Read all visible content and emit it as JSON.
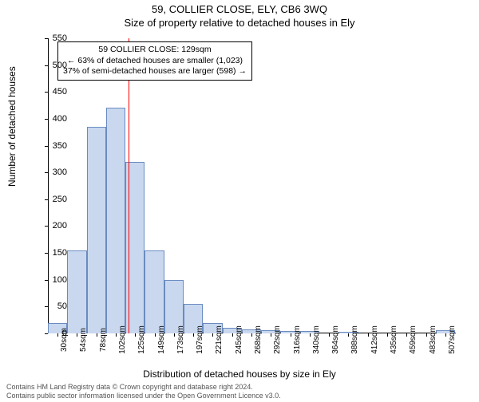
{
  "title": "59, COLLIER CLOSE, ELY, CB6 3WQ",
  "subtitle": "Size of property relative to detached houses in Ely",
  "ylabel": "Number of detached houses",
  "xlabel": "Distribution of detached houses by size in Ely",
  "chart": {
    "type": "histogram",
    "ylim": [
      0,
      550
    ],
    "ytick_step": 50,
    "yticks": [
      0,
      50,
      100,
      150,
      200,
      250,
      300,
      350,
      400,
      450,
      500,
      550
    ],
    "xtick_labels": [
      "30sqm",
      "54sqm",
      "78sqm",
      "102sqm",
      "125sqm",
      "149sqm",
      "173sqm",
      "197sqm",
      "221sqm",
      "245sqm",
      "268sqm",
      "292sqm",
      "316sqm",
      "340sqm",
      "364sqm",
      "388sqm",
      "412sqm",
      "435sqm",
      "459sqm",
      "483sqm",
      "507sqm"
    ],
    "values": [
      20,
      155,
      385,
      420,
      320,
      155,
      100,
      55,
      20,
      10,
      8,
      6,
      5,
      4,
      0,
      3,
      0,
      0,
      0,
      0,
      6
    ],
    "bar_fill": "#c9d8ef",
    "bar_stroke": "#6a8bc0",
    "bar_stroke_width": 1,
    "background_color": "#ffffff",
    "axis_color": "#000000",
    "tick_fontsize": 11,
    "label_fontsize": 12,
    "title_fontsize": 13
  },
  "reference_line": {
    "value_sqm": 129,
    "color": "#ff0000",
    "width": 1
  },
  "info_box": {
    "line1": "59 COLLIER CLOSE: 129sqm",
    "line2": "← 63% of detached houses are smaller (1,023)",
    "line3": "37% of semi-detached houses are larger (598) →"
  },
  "footer": {
    "line1": "Contains HM Land Registry data © Crown copyright and database right 2024.",
    "line2": "Contains public sector information licensed under the Open Government Licence v3.0."
  }
}
